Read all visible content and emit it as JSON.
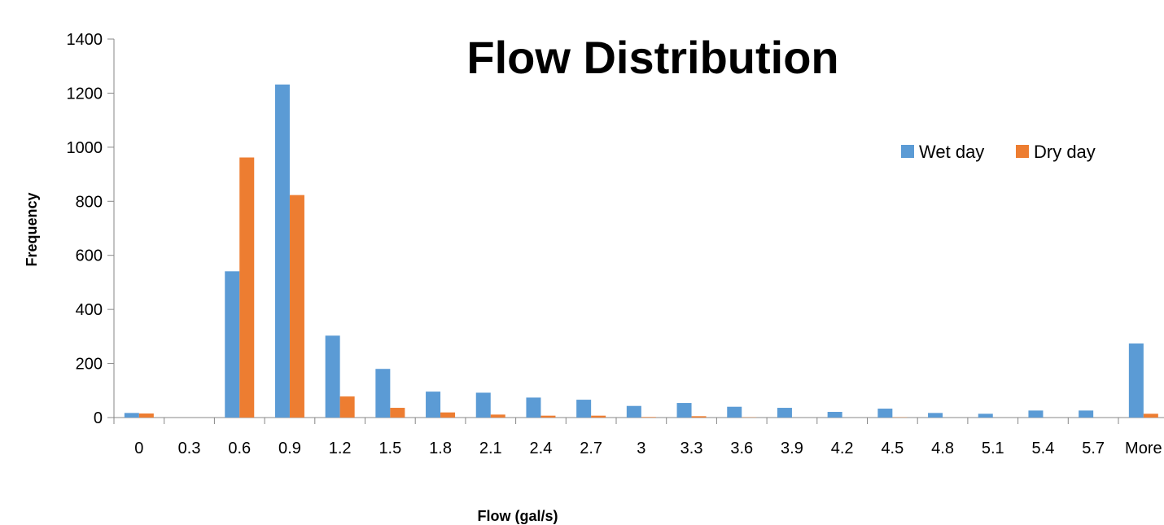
{
  "chart_data": {
    "type": "bar",
    "title": "Flow Distribution",
    "xlabel": "Flow (gal/s)",
    "ylabel": "Frequency",
    "categories": [
      "0",
      "0.3",
      "0.6",
      "0.9",
      "1.2",
      "1.5",
      "1.8",
      "2.1",
      "2.4",
      "2.7",
      "3",
      "3.3",
      "3.6",
      "3.9",
      "4.2",
      "4.5",
      "4.8",
      "5.1",
      "5.4",
      "5.7",
      "More"
    ],
    "series": [
      {
        "name": "Wet day",
        "color": "#5B9BD5",
        "values": [
          17,
          0,
          541,
          1232,
          303,
          180,
          96,
          92,
          74,
          66,
          43,
          54,
          40,
          36,
          21,
          33,
          17,
          14,
          26,
          26,
          274
        ]
      },
      {
        "name": "Dry day",
        "color": "#ED7D31",
        "values": [
          15,
          0,
          962,
          823,
          78,
          36,
          19,
          11,
          7,
          7,
          2,
          5,
          1,
          0,
          0,
          1,
          0,
          0,
          0,
          0,
          14
        ]
      }
    ],
    "ylim": [
      0,
      1400
    ],
    "yticks": [
      0,
      200,
      400,
      600,
      800,
      1000,
      1200,
      1400
    ],
    "grid": false,
    "legend_position": "top-right"
  }
}
